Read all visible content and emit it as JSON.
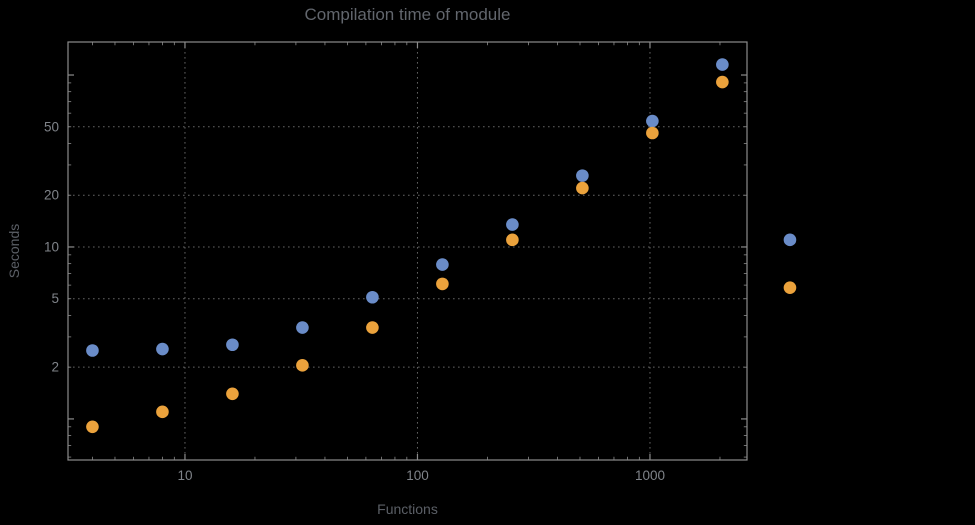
{
  "style": {
    "background": "#000000",
    "frame_color": "#8c8c8c",
    "grid_color": "#646464",
    "title_color": "#62666d",
    "axis_label_color": "#5b5f66",
    "tick_label_color": "#7f8389",
    "point_radius": 6.3
  },
  "chart_data": {
    "type": "scatter",
    "title": "Compilation time of module",
    "xlabel": "Functions",
    "ylabel": "Seconds",
    "x_scale": "log",
    "y_scale": "log",
    "x_range": [
      3.14,
      2614
    ],
    "y_range": [
      0.577,
      155.6
    ],
    "x_ticks": [
      10,
      100,
      1000
    ],
    "y_ticks": [
      2,
      5,
      10,
      20,
      50
    ],
    "grid": "dotted",
    "legend": "none",
    "series": [
      {
        "name": "series-1-blue",
        "color": "#6a8cc8",
        "points": [
          [
            4,
            2.5
          ],
          [
            8,
            2.55
          ],
          [
            16,
            2.7
          ],
          [
            32,
            3.4
          ],
          [
            64,
            5.1
          ],
          [
            128,
            7.9
          ],
          [
            256,
            13.5
          ],
          [
            512,
            26
          ],
          [
            1024,
            54
          ],
          [
            2048,
            115
          ],
          [
            4000,
            11
          ]
        ]
      },
      {
        "name": "series-2-orange",
        "color": "#eba23c",
        "points": [
          [
            4,
            0.9
          ],
          [
            8,
            1.1
          ],
          [
            16,
            1.4
          ],
          [
            32,
            2.05
          ],
          [
            64,
            3.4
          ],
          [
            128,
            6.1
          ],
          [
            256,
            11
          ],
          [
            512,
            22
          ],
          [
            1024,
            46
          ],
          [
            2048,
            91
          ],
          [
            4000,
            5.8
          ]
        ]
      }
    ]
  }
}
